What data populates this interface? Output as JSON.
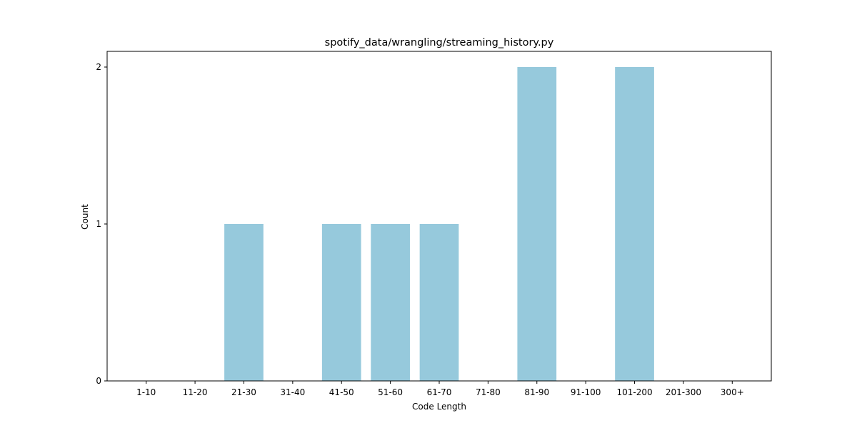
{
  "chart_data": {
    "type": "bar",
    "title": "spotify_data/wrangling/streaming_history.py",
    "xlabel": "Code Length",
    "ylabel": "Count",
    "categories": [
      "1-10",
      "11-20",
      "21-30",
      "31-40",
      "41-50",
      "51-60",
      "61-70",
      "71-80",
      "81-90",
      "91-100",
      "101-200",
      "201-300",
      "300+"
    ],
    "values": [
      0,
      0,
      1,
      0,
      1,
      1,
      1,
      0,
      2,
      0,
      2,
      0,
      0
    ],
    "yticks": [
      "0",
      "1",
      "2"
    ],
    "ylim": [
      0,
      2.1
    ],
    "grid": false,
    "legend": "none",
    "bar_color": "#96c9dc"
  }
}
